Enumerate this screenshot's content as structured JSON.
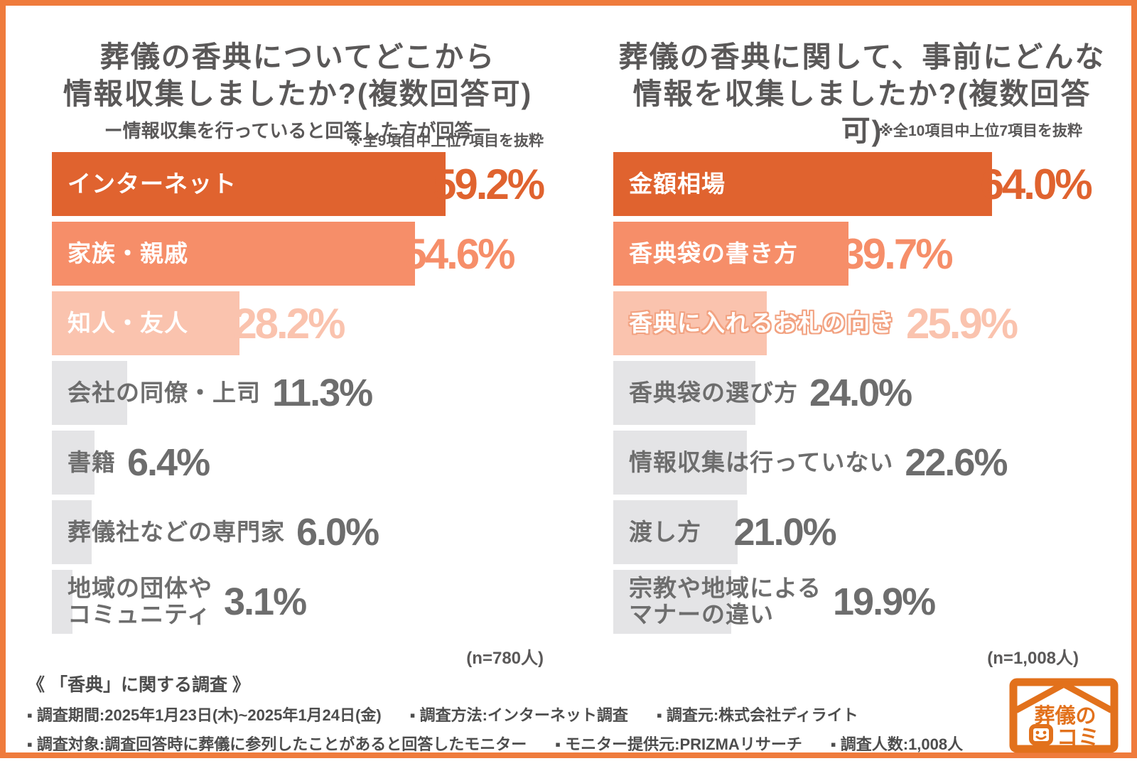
{
  "colors": {
    "frame_orange": "#EF7B3C",
    "bar_rank1": "#E0632F",
    "bar_rank2": "#F68E69",
    "bar_rank3": "#FAC3AE",
    "bar_gray": "#E4E4E6",
    "gray_text": "#6D6D6D",
    "title_text": "#5A5858",
    "outline_label_stroke": "#F2A281"
  },
  "chart_data": [
    {
      "type": "bar",
      "orientation": "horizontal",
      "title_lines": [
        "葬儀の香典についてどこから",
        "情報収集しましたか?(複数回答可)"
      ],
      "subtitle": "ー情報収集を行っていると回答した方が回答ー",
      "note": "※全9項目中上位7項目を抜粋",
      "sample_label": "(n=780人)",
      "categories": [
        "インターネット",
        "家族・親戚",
        "知人・友人",
        "会社の同僚・上司",
        "書籍",
        "葬儀社などの専門家",
        "地域の団体や\nコミュニティ"
      ],
      "values": [
        59.2,
        54.6,
        28.2,
        11.3,
        6.4,
        6.0,
        3.1
      ],
      "value_labels": [
        "59.2%",
        "54.6%",
        "28.2%",
        "11.3%",
        "6.4%",
        "6.0%",
        "3.1%"
      ],
      "row_styles": [
        "r1",
        "r2",
        "r3",
        "g",
        "g",
        "g",
        "g"
      ],
      "xlim": [
        0,
        74
      ],
      "grid": false,
      "legend": false
    },
    {
      "type": "bar",
      "orientation": "horizontal",
      "title_lines": [
        "葬儀の香典に関して、事前にどんな",
        "情報を収集しましたか?(複数回答可)"
      ],
      "subtitle": "",
      "note": "※全10項目中上位7項目を抜粋",
      "sample_label": "(n=1,008人)",
      "categories": [
        "金額相場",
        "香典袋の書き方",
        "香典に入れるお札の向き",
        "香典袋の選び方",
        "情報収集は行っていない",
        "渡し方",
        "宗教や地域による\nマナーの違い"
      ],
      "values": [
        64.0,
        39.7,
        25.9,
        24.0,
        22.6,
        21.0,
        19.9
      ],
      "value_labels": [
        "64.0%",
        "39.7%",
        "25.9%",
        "24.0%",
        "22.6%",
        "21.0%",
        "19.9%"
      ],
      "row_styles": [
        "r1",
        "r2",
        "r3 outline",
        "g",
        "g",
        "g",
        "g"
      ],
      "xlim": [
        0,
        84
      ],
      "grid": false,
      "legend": false
    }
  ],
  "footer": {
    "survey_title": "《 「香典」に関する調査 》",
    "line1": [
      "▪ 調査期間:2025年1月23日(木)~2025年1月24日(金)",
      "▪ 調査方法:インターネット調査",
      "▪ 調査元:株式会社ディライト"
    ],
    "line2": [
      "▪ 調査対象:調査回答時に葬儀に参列したことがあると回答したモニター",
      "▪ モニター提供元:PRIZMAリサーチ",
      "▪ 調査人数:1,008人"
    ]
  },
  "logo": {
    "brand_line1": "葬儀の",
    "brand_line2": "コミ",
    "brand_name": "葬儀の口コミ"
  }
}
